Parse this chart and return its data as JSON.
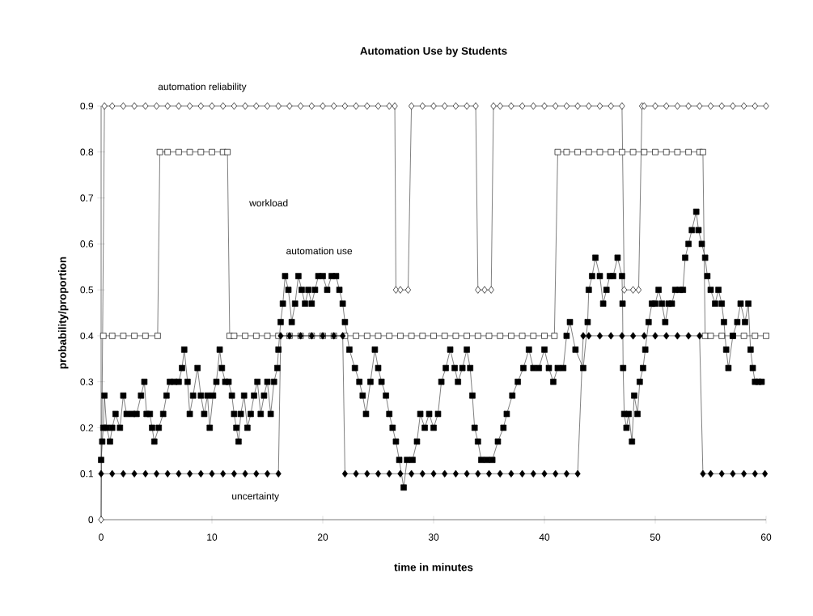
{
  "chart_data": {
    "type": "line",
    "title": "Automation Use by Students",
    "xlabel": "time in minutes",
    "ylabel": "probability/proportion",
    "xlim": [
      0,
      60
    ],
    "ylim": [
      0,
      0.9
    ],
    "xticks": [
      0,
      10,
      20,
      30,
      40,
      50,
      60
    ],
    "yticks": [
      0,
      0.1,
      0.2,
      0.3,
      0.4,
      0.5,
      0.6,
      0.7,
      0.8,
      0.9
    ],
    "series": [
      {
        "name": "automation reliability",
        "color": "#ffffff",
        "marker": "diamond",
        "x": [
          0,
          0.3,
          1,
          2,
          3,
          4,
          5,
          6,
          7,
          8,
          9,
          10,
          11,
          12,
          13,
          14,
          15,
          16,
          17,
          18,
          19,
          20,
          21,
          22,
          23,
          24,
          25,
          26,
          26.5,
          26.6,
          27,
          27.7,
          28,
          29,
          30,
          31,
          32,
          33,
          33.8,
          34,
          34.6,
          35.2,
          35.4,
          36,
          37,
          38,
          39,
          40,
          41,
          42,
          43,
          44,
          45,
          46,
          47,
          47.2,
          48,
          48.5,
          48.8,
          49,
          50,
          51,
          52,
          53,
          54,
          55,
          56,
          57,
          58,
          59,
          60
        ],
        "values": [
          0,
          0.9,
          0.9,
          0.9,
          0.9,
          0.9,
          0.9,
          0.9,
          0.9,
          0.9,
          0.9,
          0.9,
          0.9,
          0.9,
          0.9,
          0.9,
          0.9,
          0.9,
          0.9,
          0.9,
          0.9,
          0.9,
          0.9,
          0.9,
          0.9,
          0.9,
          0.9,
          0.9,
          0.9,
          0.5,
          0.5,
          0.5,
          0.9,
          0.9,
          0.9,
          0.9,
          0.9,
          0.9,
          0.9,
          0.5,
          0.5,
          0.5,
          0.9,
          0.9,
          0.9,
          0.9,
          0.9,
          0.9,
          0.9,
          0.9,
          0.9,
          0.9,
          0.9,
          0.9,
          0.9,
          0.5,
          0.5,
          0.5,
          0.9,
          0.9,
          0.9,
          0.9,
          0.9,
          0.9,
          0.9,
          0.9,
          0.9,
          0.9,
          0.9,
          0.9,
          0.9
        ]
      },
      {
        "name": "workload",
        "color": "#ffffff",
        "marker": "square",
        "x": [
          0.2,
          1,
          2,
          3,
          4,
          5.1,
          5.3,
          6,
          7,
          8,
          9,
          10,
          11,
          11.4,
          11.6,
          12,
          13,
          14,
          15,
          16,
          17,
          18,
          19,
          20,
          21,
          22,
          23,
          24,
          25,
          26,
          27,
          28,
          29,
          30,
          31,
          32,
          33,
          34,
          35,
          36,
          37,
          38,
          39,
          40,
          40.9,
          41.2,
          42,
          43,
          44,
          45,
          46,
          47,
          48,
          49,
          50,
          51,
          52,
          53,
          54,
          54.3,
          54.5,
          55,
          56,
          57,
          58,
          59,
          60
        ],
        "values": [
          0.4,
          0.4,
          0.4,
          0.4,
          0.4,
          0.4,
          0.8,
          0.8,
          0.8,
          0.8,
          0.8,
          0.8,
          0.8,
          0.8,
          0.4,
          0.4,
          0.4,
          0.4,
          0.4,
          0.4,
          0.4,
          0.4,
          0.4,
          0.4,
          0.4,
          0.4,
          0.4,
          0.4,
          0.4,
          0.4,
          0.4,
          0.4,
          0.4,
          0.4,
          0.4,
          0.4,
          0.4,
          0.4,
          0.4,
          0.4,
          0.4,
          0.4,
          0.4,
          0.4,
          0.4,
          0.8,
          0.8,
          0.8,
          0.8,
          0.8,
          0.8,
          0.8,
          0.8,
          0.8,
          0.8,
          0.8,
          0.8,
          0.8,
          0.8,
          0.8,
          0.4,
          0.4,
          0.4,
          0.4,
          0.4,
          0.4,
          0.4
        ]
      },
      {
        "name": "uncertainty",
        "color": "#000000",
        "marker": "diamond",
        "x": [
          0,
          1,
          2,
          3,
          4,
          5,
          6,
          7,
          8,
          9,
          10,
          11,
          12,
          13,
          14,
          15,
          16,
          16.2,
          17,
          18,
          19,
          20,
          21,
          21.8,
          22,
          23,
          24,
          25,
          26,
          27,
          28,
          29,
          30,
          31,
          32,
          33,
          34,
          35,
          36,
          37,
          38,
          39,
          40,
          41,
          42,
          43,
          43.5,
          44,
          45,
          46,
          47,
          48,
          49,
          50,
          51,
          52,
          53,
          54,
          54.3,
          55,
          56,
          57,
          58,
          59,
          59.9
        ],
        "values": [
          0.1,
          0.1,
          0.1,
          0.1,
          0.1,
          0.1,
          0.1,
          0.1,
          0.1,
          0.1,
          0.1,
          0.1,
          0.1,
          0.1,
          0.1,
          0.1,
          0.1,
          0.4,
          0.4,
          0.4,
          0.4,
          0.4,
          0.4,
          0.4,
          0.1,
          0.1,
          0.1,
          0.1,
          0.1,
          0.1,
          0.1,
          0.1,
          0.1,
          0.1,
          0.1,
          0.1,
          0.1,
          0.1,
          0.1,
          0.1,
          0.1,
          0.1,
          0.1,
          0.1,
          0.1,
          0.1,
          0.4,
          0.4,
          0.4,
          0.4,
          0.4,
          0.4,
          0.4,
          0.4,
          0.4,
          0.4,
          0.4,
          0.4,
          0.1,
          0.1,
          0.1,
          0.1,
          0.1,
          0.1,
          0.1
        ]
      },
      {
        "name": "automation use",
        "color": "#000000",
        "marker": "square",
        "x": [
          0,
          0.1,
          0.2,
          0.3,
          0.5,
          0.8,
          1,
          1.3,
          1.7,
          2,
          2.3,
          2.8,
          3.2,
          3.6,
          3.9,
          4.1,
          4.4,
          4.6,
          4.8,
          5.2,
          5.6,
          5.9,
          6.2,
          6.6,
          7,
          7.3,
          7.5,
          7.8,
          8,
          8.3,
          8.7,
          9,
          9.3,
          9.6,
          9.8,
          10.1,
          10.4,
          10.7,
          10.9,
          11.2,
          11.5,
          11.8,
          12,
          12.2,
          12.4,
          12.6,
          12.9,
          13.2,
          13.5,
          13.8,
          14.1,
          14.4,
          14.7,
          15,
          15.3,
          15.6,
          15.9,
          16,
          16.2,
          16.4,
          16.6,
          16.9,
          17.2,
          17.5,
          17.8,
          18.1,
          18.4,
          18.7,
          19,
          19.3,
          19.6,
          20,
          20.4,
          20.8,
          21.2,
          21.5,
          21.8,
          22,
          22.4,
          22.9,
          23.3,
          23.6,
          23.9,
          24.3,
          24.7,
          25,
          25.3,
          25.7,
          26,
          26.3,
          26.6,
          26.9,
          27.3,
          27.6,
          28.1,
          28.5,
          28.8,
          29.2,
          29.6,
          30,
          30.4,
          30.7,
          31.1,
          31.5,
          31.9,
          32.2,
          32.6,
          33,
          33.3,
          33.5,
          33.7,
          34,
          34.3,
          34.8,
          35.3,
          35.8,
          36.3,
          36.6,
          37.1,
          37.6,
          38.1,
          38.6,
          39,
          39.5,
          40,
          40.4,
          40.8,
          41.2,
          41.7,
          42,
          42.3,
          42.8,
          43.5,
          43.9,
          44,
          44.3,
          44.6,
          45,
          45.3,
          45.6,
          45.9,
          46.2,
          46.6,
          47,
          47.05,
          47.1,
          47.2,
          47.4,
          47.6,
          47.9,
          48.1,
          48.4,
          48.6,
          48.9,
          49.1,
          49.4,
          49.7,
          50,
          50.3,
          50.6,
          50.9,
          51.2,
          51.5,
          51.8,
          52.2,
          52.5,
          52.7,
          53,
          53.3,
          53.7,
          53.9,
          54.2,
          54.5,
          54.7,
          55,
          55.4,
          55.7,
          56,
          56.2,
          56.4,
          56.6,
          57,
          57.4,
          57.7,
          58.1,
          58.4,
          58.6,
          58.8,
          59,
          59.3,
          59.6
        ],
        "values": [
          0.13,
          0.17,
          0.2,
          0.27,
          0.2,
          0.17,
          0.2,
          0.23,
          0.2,
          0.27,
          0.23,
          0.23,
          0.23,
          0.27,
          0.3,
          0.23,
          0.23,
          0.2,
          0.17,
          0.2,
          0.23,
          0.27,
          0.3,
          0.3,
          0.3,
          0.33,
          0.37,
          0.3,
          0.23,
          0.27,
          0.33,
          0.27,
          0.23,
          0.27,
          0.2,
          0.27,
          0.3,
          0.37,
          0.33,
          0.3,
          0.3,
          0.27,
          0.23,
          0.2,
          0.17,
          0.23,
          0.27,
          0.2,
          0.23,
          0.27,
          0.3,
          0.23,
          0.27,
          0.3,
          0.23,
          0.3,
          0.33,
          0.37,
          0.43,
          0.47,
          0.53,
          0.5,
          0.43,
          0.47,
          0.53,
          0.5,
          0.47,
          0.5,
          0.47,
          0.5,
          0.53,
          0.53,
          0.5,
          0.53,
          0.53,
          0.5,
          0.47,
          0.43,
          0.37,
          0.33,
          0.3,
          0.27,
          0.23,
          0.3,
          0.37,
          0.33,
          0.3,
          0.27,
          0.23,
          0.2,
          0.17,
          0.13,
          0.07,
          0.13,
          0.13,
          0.17,
          0.23,
          0.2,
          0.23,
          0.2,
          0.23,
          0.3,
          0.33,
          0.37,
          0.33,
          0.3,
          0.33,
          0.37,
          0.33,
          0.27,
          0.2,
          0.17,
          0.13,
          0.13,
          0.13,
          0.17,
          0.2,
          0.23,
          0.27,
          0.3,
          0.33,
          0.37,
          0.33,
          0.33,
          0.37,
          0.33,
          0.3,
          0.33,
          0.33,
          0.4,
          0.43,
          0.37,
          0.33,
          0.43,
          0.5,
          0.53,
          0.57,
          0.53,
          0.47,
          0.5,
          0.53,
          0.53,
          0.57,
          0.53,
          0.47,
          0.33,
          0.23,
          0.2,
          0.23,
          0.17,
          0.27,
          0.23,
          0.3,
          0.33,
          0.37,
          0.43,
          0.47,
          0.47,
          0.5,
          0.47,
          0.43,
          0.47,
          0.47,
          0.5,
          0.5,
          0.5,
          0.57,
          0.6,
          0.63,
          0.67,
          0.63,
          0.6,
          0.57,
          0.53,
          0.5,
          0.47,
          0.5,
          0.47,
          0.43,
          0.37,
          0.33,
          0.4,
          0.43,
          0.47,
          0.43,
          0.47,
          0.37,
          0.33,
          0.3,
          0.3,
          0.3
        ]
      }
    ]
  }
}
